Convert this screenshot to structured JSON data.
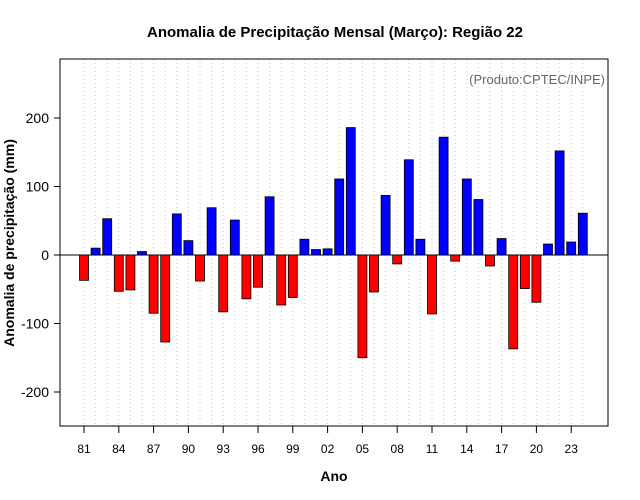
{
  "chart_data": {
    "type": "bar",
    "title": "Anomalia de Precipitação Mensal (Março): Região 22",
    "xlabel": "Ano",
    "ylabel": "Anomalia de precipitação (mm)",
    "credit": "(Produto:CPTEC/INPE)",
    "ylim": [
      -250,
      285
    ],
    "yticks": [
      -200,
      -100,
      0,
      100,
      200
    ],
    "grid": "vertical-dotted",
    "positive_color": "#0000ff",
    "negative_color": "#ff0000",
    "x": [
      1981,
      1982,
      1983,
      1984,
      1985,
      1986,
      1987,
      1988,
      1989,
      1990,
      1991,
      1992,
      1993,
      1994,
      1995,
      1996,
      1997,
      1998,
      1999,
      2000,
      2001,
      2002,
      2003,
      2004,
      2005,
      2006,
      2007,
      2008,
      2009,
      2010,
      2011,
      2012,
      2013,
      2014,
      2015,
      2016,
      2017,
      2018,
      2019,
      2020,
      2021,
      2022,
      2023,
      2024
    ],
    "xticks": [
      "81",
      "84",
      "87",
      "90",
      "93",
      "96",
      "99",
      "02",
      "05",
      "08",
      "11",
      "14",
      "17",
      "20",
      "23"
    ],
    "values": [
      -37,
      10,
      53,
      -53,
      -51,
      5,
      -85,
      -127,
      60,
      21,
      -38,
      69,
      -83,
      51,
      -64,
      -47,
      85,
      -73,
      -62,
      23,
      8,
      9,
      111,
      186,
      -150,
      -54,
      87,
      -13,
      139,
      23,
      -86,
      172,
      -9,
      111,
      81,
      -16,
      24,
      -137,
      -49,
      -69,
      16,
      152,
      19,
      61
    ]
  }
}
